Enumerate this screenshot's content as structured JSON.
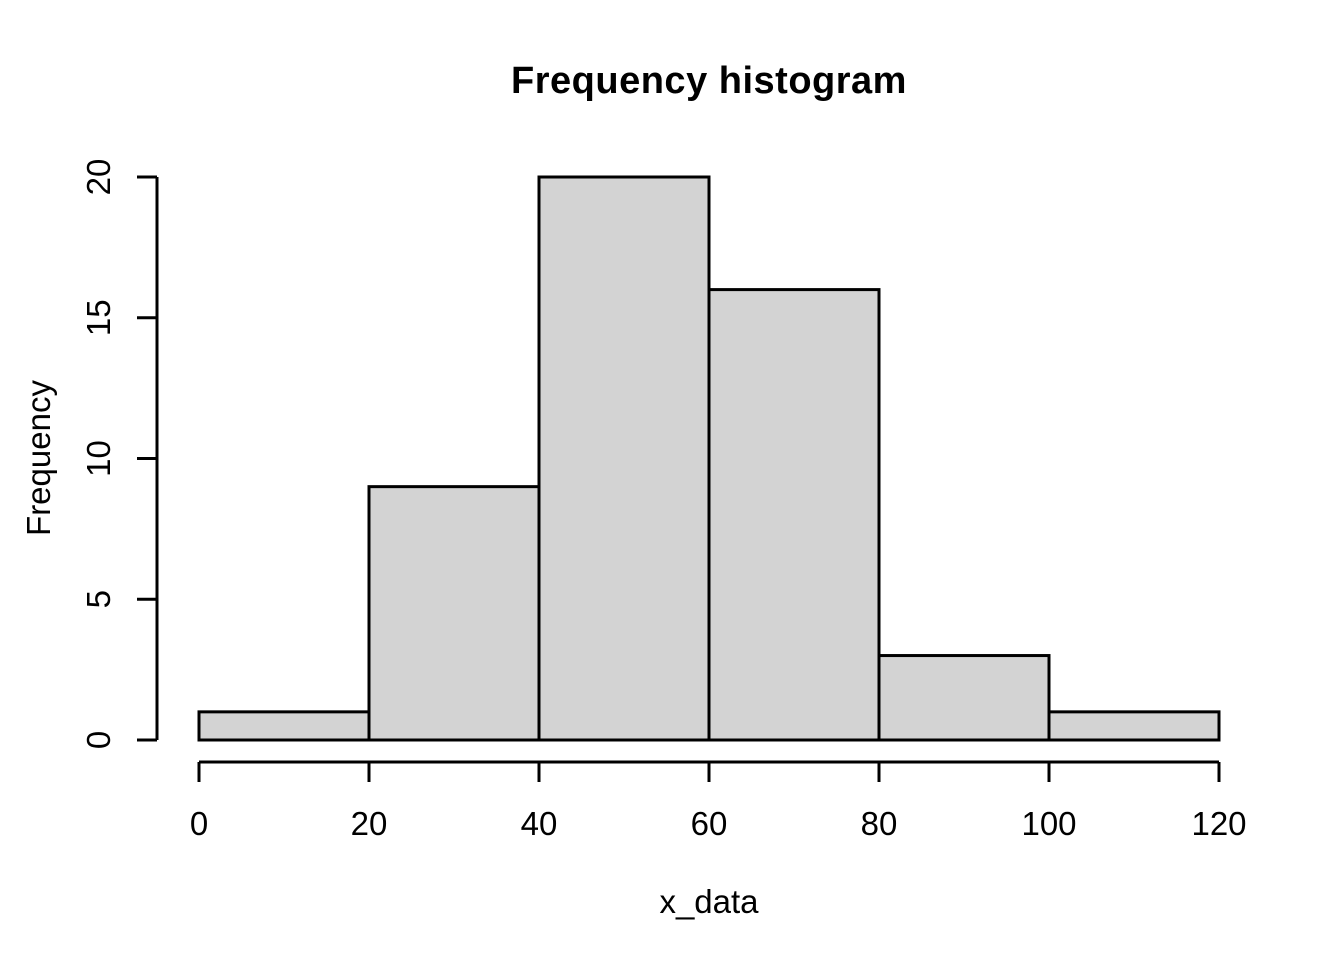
{
  "chart_data": {
    "type": "bar",
    "subtype": "histogram",
    "title": "Frequency histogram",
    "xlabel": "x_data",
    "ylabel": "Frequency",
    "bin_edges": [
      0,
      20,
      40,
      60,
      80,
      100,
      120
    ],
    "counts": [
      1,
      9,
      20,
      16,
      3,
      1
    ],
    "x_ticks": [
      0,
      20,
      40,
      60,
      80,
      100,
      120
    ],
    "y_ticks": [
      0,
      5,
      10,
      15,
      20
    ],
    "xlim": [
      0,
      120
    ],
    "ylim": [
      0,
      20
    ],
    "grid": false,
    "legend": null,
    "colors": {
      "bar_fill": "#d3d3d3",
      "bar_border": "#000000",
      "axis": "#000000",
      "text": "#000000",
      "background": "#ffffff"
    }
  }
}
